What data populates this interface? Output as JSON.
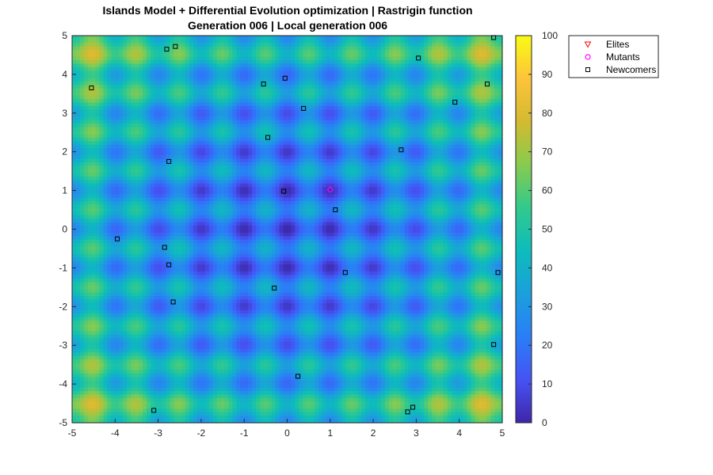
{
  "chart_data": {
    "type": "heatmap",
    "title": "Islands Model + Differential Evolution optimization | Rastrigin function",
    "subtitle": "Generation 006 | Local generation 006",
    "function": "Rastrigin",
    "xlim": [
      -5,
      5
    ],
    "ylim": [
      -5,
      5
    ],
    "x_ticks": [
      "-5",
      "-4",
      "-3",
      "-2",
      "-1",
      "0",
      "1",
      "2",
      "3",
      "4",
      "5"
    ],
    "y_ticks": [
      "5",
      "4",
      "3",
      "2",
      "1",
      "0",
      "-1",
      "-2",
      "-3",
      "-4",
      "-5"
    ],
    "colorbar": {
      "range": [
        0,
        100
      ],
      "ticks": [
        "100",
        "90",
        "80",
        "70",
        "60",
        "50",
        "40",
        "30",
        "20",
        "10",
        "0"
      ],
      "colormap": "parula",
      "colors": [
        "#3e26a8",
        "#4653f4",
        "#2a7ef7",
        "#1c9fdc",
        "#0dbcbb",
        "#32c98c",
        "#88cb4f",
        "#d3ba31",
        "#fdc33a",
        "#f9fb15"
      ]
    },
    "grid": false,
    "legend_position": "outside-right",
    "legend": [
      {
        "label": "Elites",
        "marker": "triangle-down",
        "color": "#ff0000"
      },
      {
        "label": "Mutants",
        "marker": "circle",
        "color": "#ff00ff"
      },
      {
        "label": "Newcomers",
        "marker": "square",
        "color": "#000000"
      }
    ],
    "series": [
      {
        "name": "Elites",
        "points": []
      },
      {
        "name": "Mutants",
        "points": [
          [
            1.0,
            1.02
          ]
        ]
      },
      {
        "name": "Newcomers",
        "points": [
          [
            -4.55,
            3.65
          ],
          [
            -2.8,
            4.65
          ],
          [
            -2.6,
            4.72
          ],
          [
            -0.55,
            3.75
          ],
          [
            -0.05,
            3.9
          ],
          [
            0.38,
            3.12
          ],
          [
            3.05,
            4.42
          ],
          [
            4.8,
            4.95
          ],
          [
            4.65,
            3.75
          ],
          [
            3.9,
            3.28
          ],
          [
            -0.45,
            2.37
          ],
          [
            2.65,
            2.05
          ],
          [
            -2.75,
            1.75
          ],
          [
            -0.08,
            0.98
          ],
          [
            1.12,
            0.5
          ],
          [
            -3.95,
            -0.25
          ],
          [
            -2.85,
            -0.47
          ],
          [
            -2.75,
            -0.92
          ],
          [
            1.35,
            -1.12
          ],
          [
            4.9,
            -1.12
          ],
          [
            -0.3,
            -1.52
          ],
          [
            -2.65,
            -1.88
          ],
          [
            4.8,
            -2.98
          ],
          [
            0.25,
            -3.8
          ],
          [
            -3.1,
            -4.68
          ],
          [
            2.8,
            -4.72
          ],
          [
            2.92,
            -4.6
          ]
        ]
      }
    ]
  }
}
